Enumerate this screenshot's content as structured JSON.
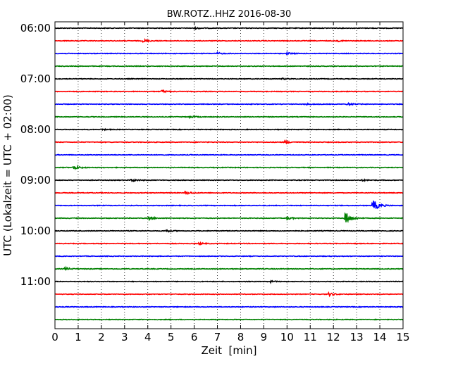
{
  "chart_data": {
    "type": "line",
    "title": "BW.ROTZ..HHZ 2016-08-30",
    "xlabel": "Zeit  [min]",
    "ylabel": "UTC (Lokalzeit = UTC + 02:00)",
    "xlim": [
      0,
      15
    ],
    "x_ticks": [
      "0",
      "1",
      "2",
      "3",
      "4",
      "5",
      "6",
      "7",
      "8",
      "9",
      "10",
      "11",
      "12",
      "13",
      "14",
      "15"
    ],
    "y_ticks": [
      "06:00",
      "07:00",
      "08:00",
      "09:00",
      "10:00",
      "11:00"
    ],
    "grid": "vertical dotted lines at each minute",
    "trace_colors": [
      "#000000",
      "#ff0000",
      "#0000ff",
      "#008000"
    ],
    "traces": [
      {
        "start": "06:00",
        "events": [
          {
            "minute": 6.0,
            "amp": 0.3
          }
        ]
      },
      {
        "start": "06:15",
        "events": [
          {
            "minute": 3.8,
            "amp": 0.5
          },
          {
            "minute": 12.2,
            "amp": 0.2
          }
        ]
      },
      {
        "start": "06:30",
        "events": [
          {
            "minute": 7.0,
            "amp": 0.3
          },
          {
            "minute": 10.0,
            "amp": 0.3
          }
        ]
      },
      {
        "start": "06:45",
        "events": []
      },
      {
        "start": "07:00",
        "events": [
          {
            "minute": 9.8,
            "amp": 0.2
          }
        ]
      },
      {
        "start": "07:15",
        "events": [
          {
            "minute": 4.6,
            "amp": 0.4
          }
        ]
      },
      {
        "start": "07:30",
        "events": [
          {
            "minute": 10.8,
            "amp": 0.3
          },
          {
            "minute": 12.6,
            "amp": 0.4
          }
        ]
      },
      {
        "start": "07:45",
        "events": [
          {
            "minute": 5.8,
            "amp": 0.4
          }
        ]
      },
      {
        "start": "08:00",
        "events": [
          {
            "minute": 2.0,
            "amp": 0.2
          }
        ]
      },
      {
        "start": "08:15",
        "events": [
          {
            "minute": 9.9,
            "amp": 0.5
          }
        ]
      },
      {
        "start": "08:30",
        "events": []
      },
      {
        "start": "08:45",
        "events": [
          {
            "minute": 0.8,
            "amp": 0.8
          }
        ]
      },
      {
        "start": "09:00",
        "events": [
          {
            "minute": 3.3,
            "amp": 0.5
          },
          {
            "minute": 13.2,
            "amp": 0.3
          }
        ]
      },
      {
        "start": "09:15",
        "events": [
          {
            "minute": 5.6,
            "amp": 0.6
          }
        ]
      },
      {
        "start": "09:30",
        "events": [
          {
            "minute": 13.7,
            "amp": 2.2
          }
        ]
      },
      {
        "start": "09:45",
        "events": [
          {
            "minute": 4.0,
            "amp": 0.7
          },
          {
            "minute": 10.0,
            "amp": 0.5
          },
          {
            "minute": 12.5,
            "amp": 2.5
          }
        ]
      },
      {
        "start": "10:00",
        "events": [
          {
            "minute": 4.8,
            "amp": 0.4
          }
        ]
      },
      {
        "start": "10:15",
        "events": [
          {
            "minute": 6.2,
            "amp": 0.3
          }
        ]
      },
      {
        "start": "10:30",
        "events": []
      },
      {
        "start": "10:45",
        "events": [
          {
            "minute": 0.4,
            "amp": 0.5
          }
        ]
      },
      {
        "start": "11:00",
        "events": [
          {
            "minute": 9.2,
            "amp": 0.4
          }
        ]
      },
      {
        "start": "11:15",
        "events": [
          {
            "minute": 11.8,
            "amp": 0.6
          }
        ]
      },
      {
        "start": "11:30",
        "events": []
      },
      {
        "start": "11:45",
        "events": []
      }
    ]
  }
}
